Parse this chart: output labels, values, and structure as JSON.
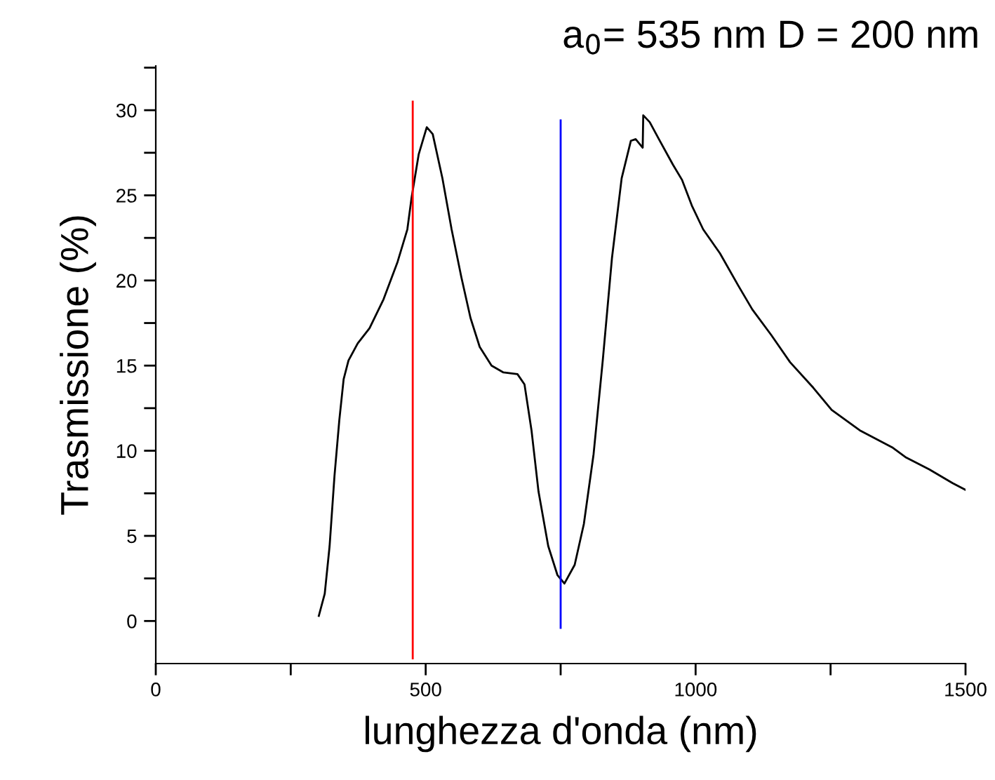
{
  "chart_data": {
    "type": "line",
    "title": "a$_{0}$= 535 nm D = 200 nm",
    "xlabel": "lunghezza d'onda (nm)",
    "ylabel": "Trasmissione (%)",
    "xlim": [
      0,
      1500
    ],
    "ylim": [
      -2.5,
      32.6
    ],
    "xticks": [
      0,
      {
        "value": 250,
        "label": null
      },
      500,
      {
        "value": 750,
        "label": null
      },
      1000,
      {
        "value": 1250,
        "label": null
      },
      1500
    ],
    "yticks": [
      0,
      {
        "value": 2.5,
        "label": null
      },
      5,
      {
        "value": 7.5,
        "label": null
      },
      10,
      {
        "value": 12.5,
        "label": null
      },
      15,
      {
        "value": 17.5,
        "label": null
      },
      20,
      {
        "value": 22.5,
        "label": null
      },
      25,
      {
        "value": 27.5,
        "label": null
      },
      30,
      {
        "value": 32.5,
        "label": null
      }
    ],
    "grid": false,
    "marker": "none",
    "line_style": "solid",
    "series": [
      {
        "color": "#000000",
        "x": [
          302,
          313,
          322,
          331,
          340,
          348,
          357,
          374,
          396,
          422,
          448,
          466,
          474,
          487,
          502,
          513,
          531,
          548,
          566,
          583,
          600,
          622,
          644,
          670,
          683,
          696,
          709,
          727,
          744,
          757,
          776,
          793,
          811,
          828,
          845,
          863,
          880,
          889,
          902,
          903,
          915,
          932,
          958,
          975,
          993,
          1014,
          1045,
          1079,
          1105,
          1140,
          1175,
          1218,
          1252,
          1304,
          1364,
          1390,
          1433,
          1476,
          1500
        ],
        "values": [
          0.3,
          1.6,
          4.4,
          8.5,
          11.8,
          14.2,
          15.3,
          16.3,
          17.2,
          18.9,
          21.1,
          23.0,
          24.9,
          27.4,
          29.0,
          28.6,
          26.0,
          23.0,
          20.2,
          17.8,
          16.1,
          15.0,
          14.6,
          14.5,
          13.9,
          11.2,
          7.6,
          4.4,
          2.7,
          2.2,
          3.3,
          5.7,
          9.8,
          15.3,
          21.3,
          26.0,
          28.2,
          28.3,
          27.8,
          29.7,
          29.3,
          28.3,
          26.8,
          25.9,
          24.4,
          23.0,
          21.6,
          19.7,
          18.3,
          16.8,
          15.2,
          13.7,
          12.4,
          11.2,
          10.2,
          9.6,
          8.9,
          8.1,
          7.7
        ]
      },
      {
        "color": "#ff0000",
        "x": [
          476,
          476
        ],
        "values": [
          -2.2,
          30.5
        ]
      },
      {
        "color": "#0000ff",
        "x": [
          750,
          750
        ],
        "values": [
          -0.4,
          29.4
        ]
      }
    ]
  }
}
